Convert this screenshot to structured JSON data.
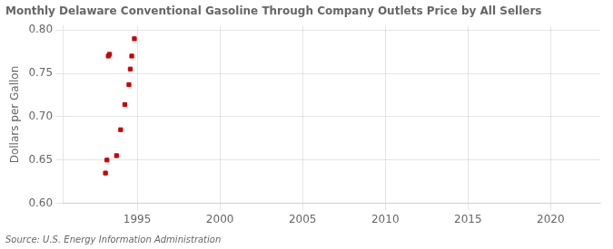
{
  "chart_data": {
    "type": "scatter",
    "title": "Monthly Delaware Conventional Gasoline Through Company Outlets Price by All Sellers",
    "y_label": "Dollars per Gallon",
    "annotations": [
      "Source: U.S. Energy Information Administration"
    ],
    "x": [
      1993.08,
      1993.17,
      1993.25,
      1993.33,
      1993.75,
      1994.0,
      1994.25,
      1994.5,
      1994.58,
      1994.67,
      1994.83
    ],
    "values": [
      0.635,
      0.65,
      0.77,
      0.772,
      0.655,
      0.685,
      0.714,
      0.737,
      0.755,
      0.77,
      0.79
    ],
    "color": "#cc0000",
    "marker": "square",
    "xlim": [
      1990.5,
      2023
    ],
    "xticks": [
      1995,
      2000,
      2005,
      2010,
      2015,
      2020
    ],
    "ylim": [
      0.6,
      0.805
    ],
    "yticks": [
      {
        "value": 0.6,
        "label": "0.60"
      },
      {
        "value": 0.65,
        "label": "0.65"
      },
      {
        "value": 0.7,
        "label": "0.70"
      },
      {
        "value": 0.75,
        "label": "0.75"
      },
      {
        "value": 0.8,
        "label": "0.80"
      }
    ],
    "grid": true
  }
}
